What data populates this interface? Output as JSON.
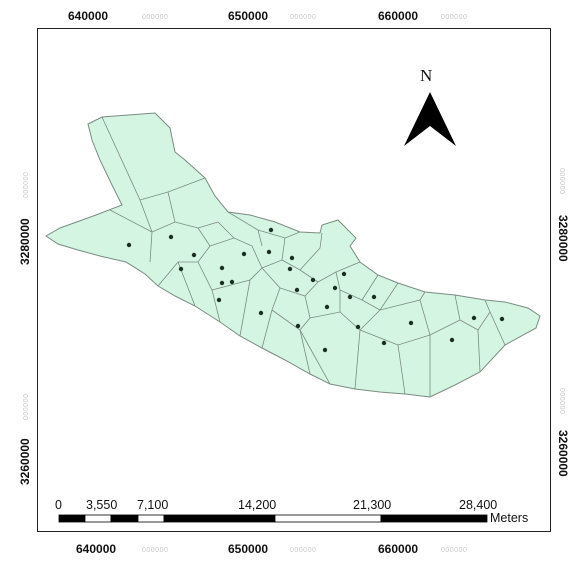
{
  "map": {
    "fill_color": "#d5f5e3",
    "edge_color": "#7a8c82",
    "point_color": "#1a2e22"
  },
  "grid": {
    "x_ticks": [
      {
        "major": "640000",
        "minor": "000000"
      },
      {
        "major": "650000",
        "minor": "000000"
      },
      {
        "major": "660000",
        "minor": "000000"
      }
    ],
    "y_ticks": [
      {
        "major": "3280000",
        "minor": "000000"
      },
      {
        "major": "3260000",
        "minor": "000000"
      }
    ]
  },
  "north_arrow": {
    "label": "N"
  },
  "scale_bar": {
    "labels": [
      "0",
      "3,550",
      "7,100",
      "14,200",
      "21,300",
      "28,400"
    ],
    "unit": "Meters"
  }
}
